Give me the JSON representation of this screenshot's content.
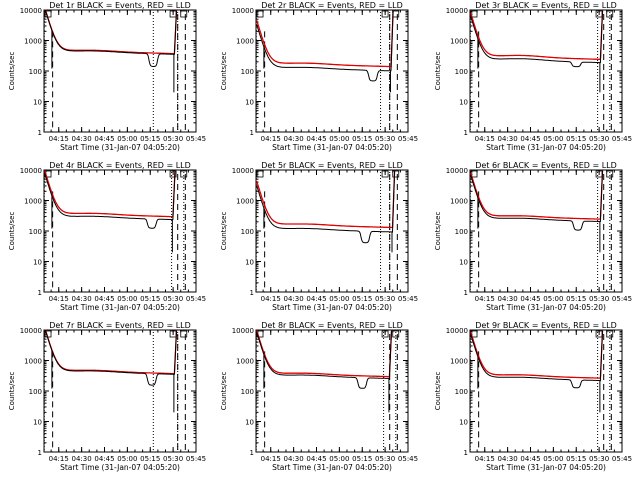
{
  "chart_data": {
    "type": "line",
    "xlabel": "Start Time (31-Jan-07 04:05:20)",
    "ylabel": "Counts/sec",
    "x_unit": "minutes",
    "xlim": [
      "04:05:20",
      "05:45:00"
    ],
    "x_ticks": [
      "04:15",
      "04:30",
      "04:45",
      "05:00",
      "05:15",
      "05:30",
      "05:45"
    ],
    "ylim": [
      1,
      10000
    ],
    "yscale": "log",
    "y_ticks": [
      "1",
      "10",
      "100",
      "1000",
      "10000"
    ],
    "legend": "BLACK = Events, RED = LLD",
    "colors": {
      "events": "#000000",
      "lld": "#e00000"
    },
    "panels": [
      {
        "title": "Det 1r BLACK = Events, RED = LLD",
        "base": 450,
        "hump": 1.1,
        "dip": "05:17",
        "dip_ratio": 0.38,
        "red_ratio": 1.05,
        "end_drop": "05:31",
        "markers": [
          "04:05:30",
          "05:17",
          "05:33"
        ]
      },
      {
        "title": "Det 2r BLACK = Events, RED = LLD",
        "base": 130,
        "hump": 1.1,
        "dip": "05:22",
        "dip_ratio": 0.45,
        "red_ratio": 1.38,
        "end_drop": "05:34",
        "markers": [
          "04:05:30",
          "05:27",
          "05:33"
        ]
      },
      {
        "title": "Det 3r BLACK = Events, RED = LLD",
        "base": 240,
        "hump": 1.15,
        "dip": "05:15",
        "dip_ratio": 0.7,
        "red_ratio": 1.28,
        "end_drop": "05:31",
        "markers": [
          "04:05:30",
          "05:29",
          "05:37"
        ]
      },
      {
        "title": "Det 4r BLACK = Events, RED = LLD",
        "base": 300,
        "hump": 1.1,
        "dip": "05:16",
        "dip_ratio": 0.5,
        "red_ratio": 1.25,
        "end_drop": "05:30",
        "markers": [
          "04:05:30",
          "05:29",
          "05:37"
        ]
      },
      {
        "title": "Det 5r BLACK = Events, RED = LLD",
        "base": 120,
        "hump": 1.1,
        "dip": "05:17",
        "dip_ratio": 0.42,
        "red_ratio": 1.4,
        "end_drop": "05:35",
        "markers": [
          "04:05:30",
          "05:27",
          "05:33"
        ]
      },
      {
        "title": "Det 6r BLACK = Events, RED = LLD",
        "base": 260,
        "hump": 1.1,
        "dip": "05:16",
        "dip_ratio": 0.5,
        "red_ratio": 1.2,
        "end_drop": "05:31",
        "markers": [
          "04:05:30",
          "05:29",
          "05:37"
        ]
      },
      {
        "title": "Det 7r BLACK = Events, RED = LLD",
        "base": 450,
        "hump": 1.1,
        "dip": "05:16",
        "dip_ratio": 0.42,
        "red_ratio": 1.05,
        "end_drop": "05:31",
        "markers": [
          "04:05:30",
          "05:17",
          "05:33"
        ]
      },
      {
        "title": "Det 8r BLACK = Events, RED = LLD",
        "base": 330,
        "hump": 1.1,
        "dip": "05:15",
        "dip_ratio": 0.45,
        "red_ratio": 1.15,
        "end_drop": "05:33",
        "markers": [
          "04:05:30",
          "05:29",
          "05:37"
        ]
      },
      {
        "title": "Det 9r BLACK = Events, RED = LLD",
        "base": 280,
        "hump": 1.1,
        "dip": "05:15",
        "dip_ratio": 0.55,
        "red_ratio": 1.2,
        "end_drop": "05:31",
        "markers": [
          "04:05:30",
          "05:29",
          "05:37"
        ]
      }
    ]
  }
}
